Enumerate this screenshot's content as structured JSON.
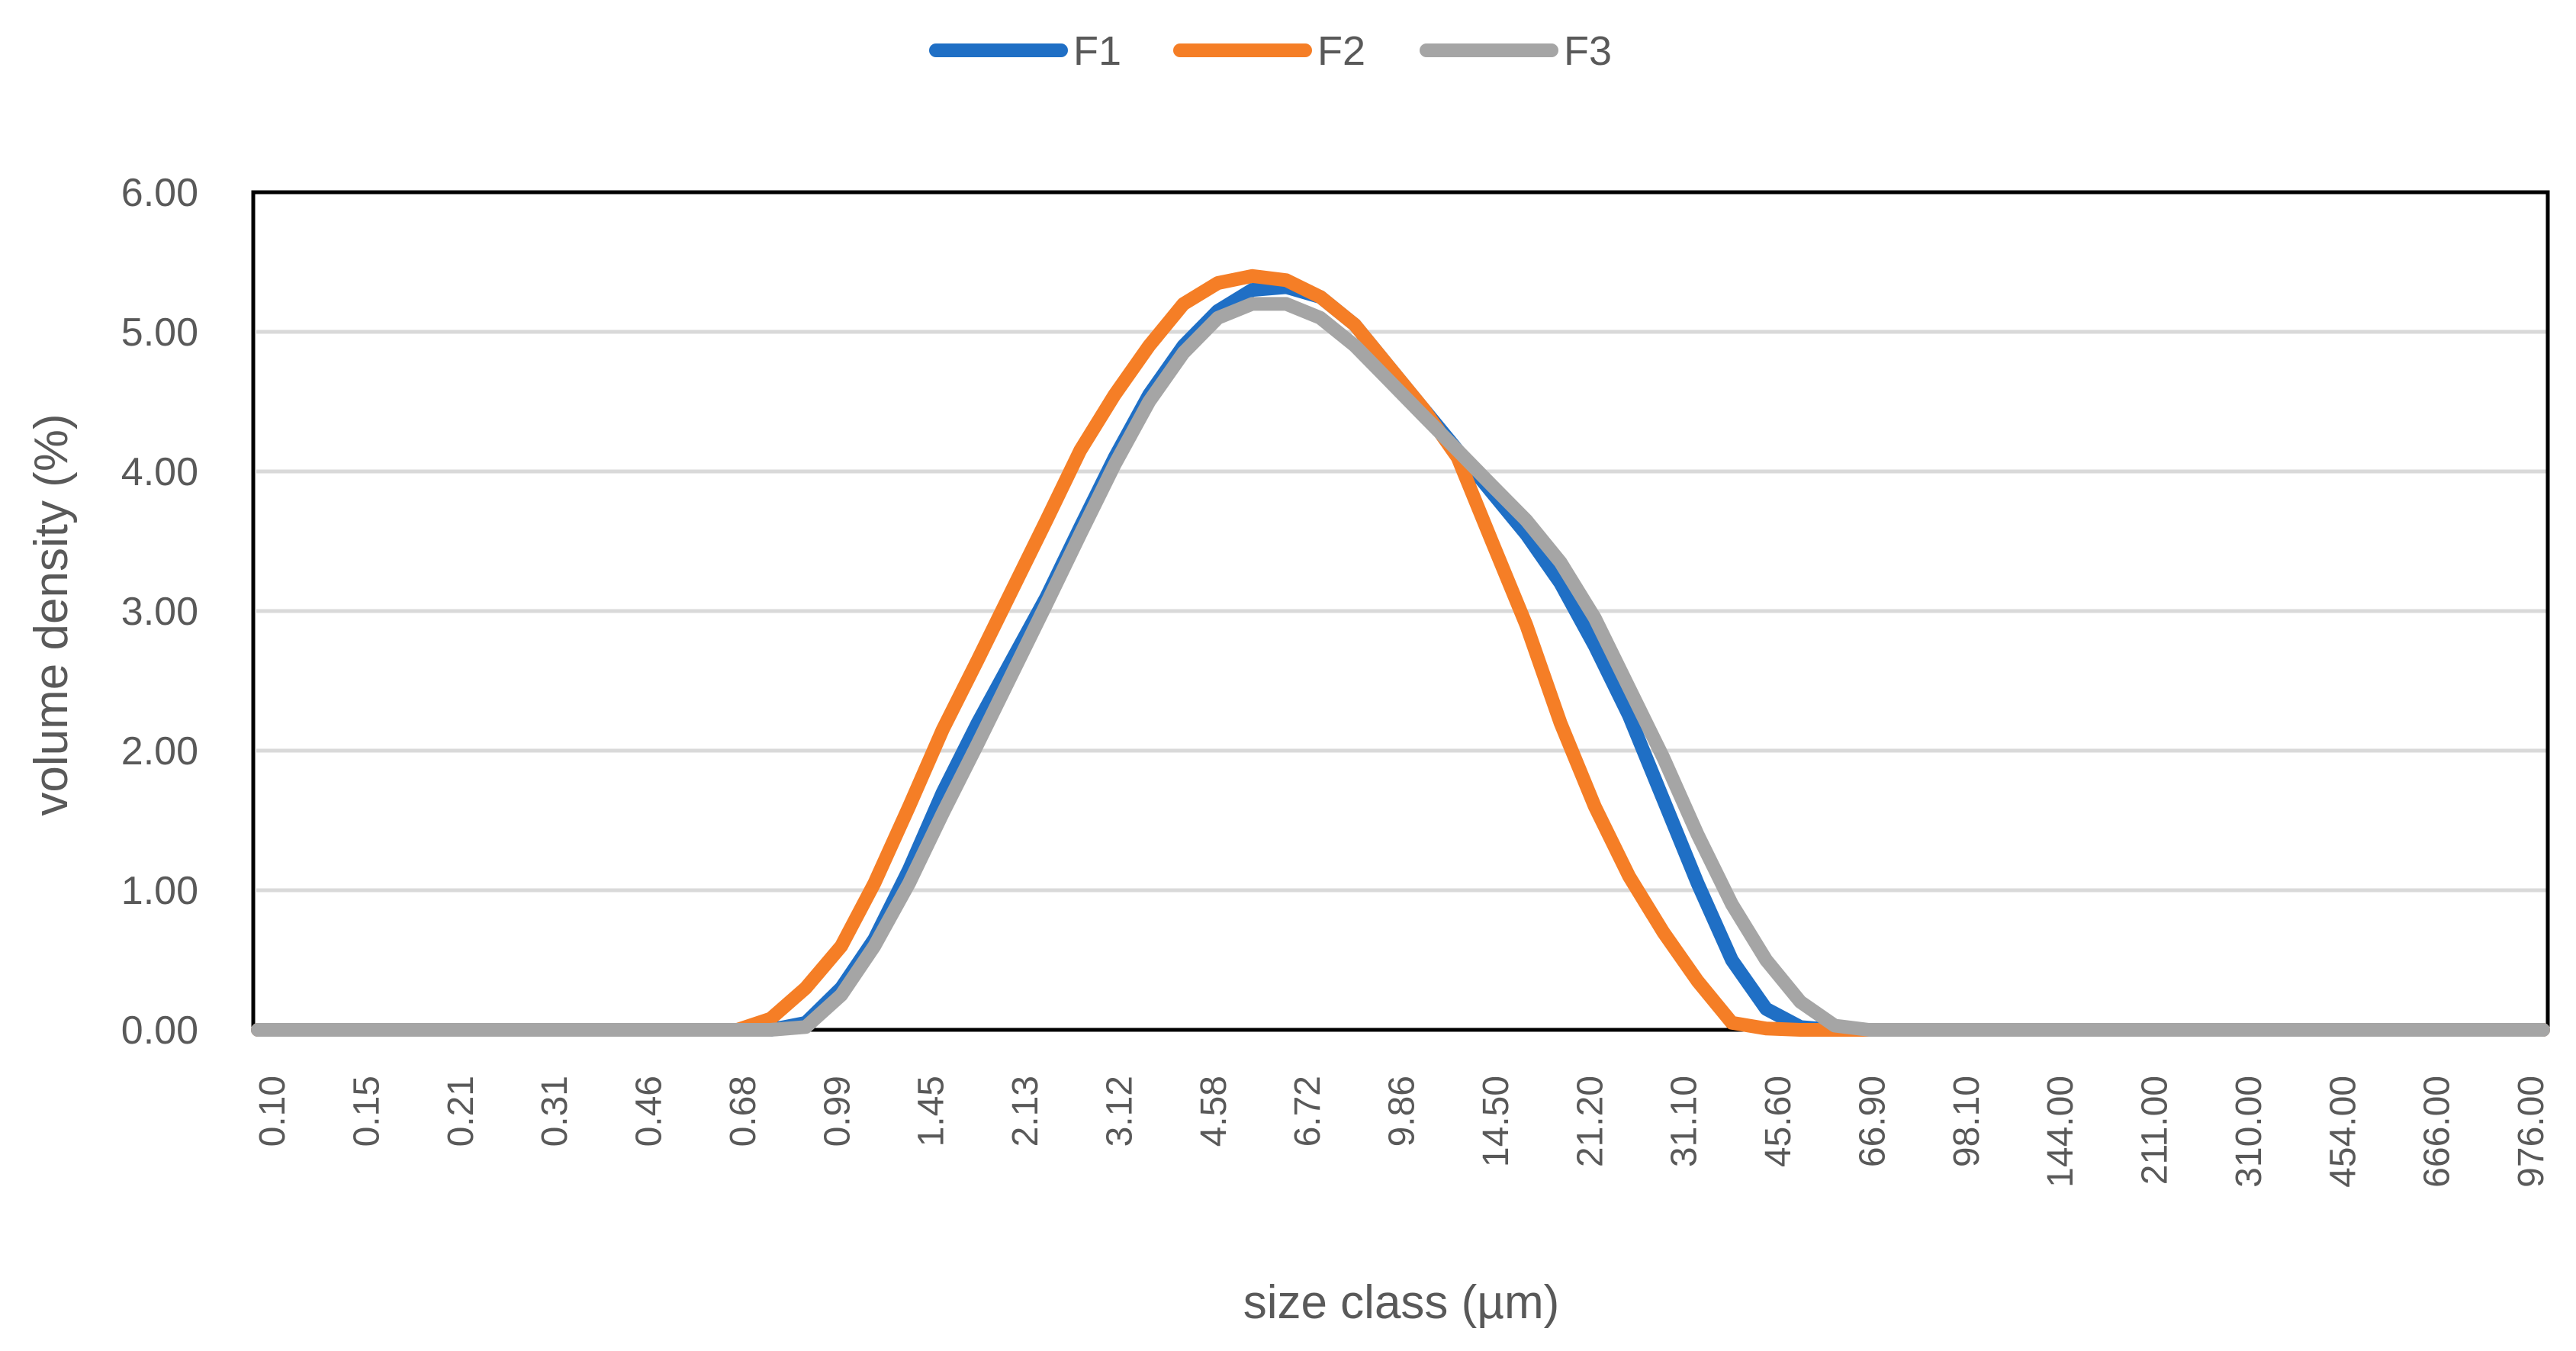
{
  "chart_data": {
    "type": "line",
    "title": "",
    "xlabel": "size class (µm)",
    "ylabel": "volume density (%)",
    "ylim": [
      0,
      6
    ],
    "yticks": [
      "0.00",
      "1.00",
      "2.00",
      "3.00",
      "4.00",
      "5.00",
      "6.00"
    ],
    "grid": "horizontal",
    "legend_position": "top-center",
    "x_scale": "log",
    "x_tick_labels": [
      "0.10",
      "0.15",
      "0.21",
      "0.31",
      "0.46",
      "0.68",
      "0.99",
      "1.45",
      "2.13",
      "3.12",
      "4.58",
      "6.72",
      "9.86",
      "14.50",
      "21.20",
      "31.10",
      "45.60",
      "66.90",
      "98.10",
      "144.00",
      "211.00",
      "310.00",
      "454.00",
      "666.00",
      "976.00"
    ],
    "x": [
      0.1,
      0.115,
      0.131,
      0.151,
      0.173,
      0.2,
      0.23,
      0.26,
      0.3,
      0.35,
      0.4,
      0.46,
      0.52,
      0.6,
      0.69,
      0.79,
      0.91,
      1.05,
      1.2,
      1.38,
      1.58,
      1.82,
      2.09,
      2.4,
      2.75,
      3.16,
      3.63,
      4.17,
      4.79,
      5.5,
      6.31,
      7.24,
      8.32,
      9.55,
      10.96,
      12.59,
      14.45,
      16.6,
      19.05,
      21.88,
      25.12,
      28.84,
      33.11,
      38.02,
      43.65,
      50.12,
      57.54,
      66.07,
      75.86,
      87.1,
      100,
      114.8,
      131.8,
      151.4,
      173.8,
      199.5,
      229.1,
      263,
      302,
      346.7,
      398.1,
      457.1,
      524.8,
      602.6,
      691.8,
      794.3,
      912,
      1000
    ],
    "series": [
      {
        "name": "F1",
        "color": "#1F6FC5",
        "values": [
          0,
          0,
          0,
          0,
          0,
          0,
          0,
          0,
          0,
          0,
          0,
          0,
          0,
          0,
          0,
          0,
          0.05,
          0.3,
          0.65,
          1.15,
          1.7,
          2.2,
          2.65,
          3.1,
          3.6,
          4.1,
          4.55,
          4.9,
          5.15,
          5.3,
          5.32,
          5.25,
          5.05,
          4.75,
          4.45,
          4.15,
          3.85,
          3.55,
          3.2,
          2.75,
          2.25,
          1.65,
          1.05,
          0.5,
          0.15,
          0.02,
          0,
          0,
          0,
          0,
          0,
          0,
          0,
          0,
          0,
          0,
          0,
          0,
          0,
          0,
          0,
          0,
          0,
          0,
          0,
          0,
          0,
          0
        ]
      },
      {
        "name": "F2",
        "color": "#F57E26",
        "values": [
          0,
          0,
          0,
          0,
          0,
          0,
          0,
          0,
          0,
          0,
          0,
          0,
          0,
          0,
          0,
          0.08,
          0.3,
          0.6,
          1.05,
          1.6,
          2.15,
          2.65,
          3.15,
          3.65,
          4.15,
          4.55,
          4.9,
          5.2,
          5.35,
          5.4,
          5.37,
          5.25,
          5.05,
          4.75,
          4.45,
          4.1,
          3.5,
          2.9,
          2.2,
          1.6,
          1.1,
          0.7,
          0.35,
          0.05,
          0.01,
          0,
          0,
          0,
          0,
          0,
          0,
          0,
          0,
          0,
          0,
          0,
          0,
          0,
          0,
          0,
          0,
          0,
          0,
          0,
          0,
          0,
          0,
          0
        ]
      },
      {
        "name": "F3",
        "color": "#A5A5A5",
        "values": [
          0,
          0,
          0,
          0,
          0,
          0,
          0,
          0,
          0,
          0,
          0,
          0,
          0,
          0,
          0,
          0,
          0.02,
          0.25,
          0.6,
          1.05,
          1.55,
          2.05,
          2.55,
          3.05,
          3.55,
          4.05,
          4.5,
          4.85,
          5.1,
          5.2,
          5.2,
          5.1,
          4.9,
          4.65,
          4.4,
          4.15,
          3.9,
          3.65,
          3.35,
          2.95,
          2.45,
          1.95,
          1.4,
          0.9,
          0.5,
          0.2,
          0.03,
          0,
          0,
          0,
          0,
          0,
          0,
          0,
          0,
          0,
          0,
          0,
          0,
          0,
          0,
          0,
          0,
          0,
          0,
          0,
          0,
          0
        ]
      }
    ]
  }
}
